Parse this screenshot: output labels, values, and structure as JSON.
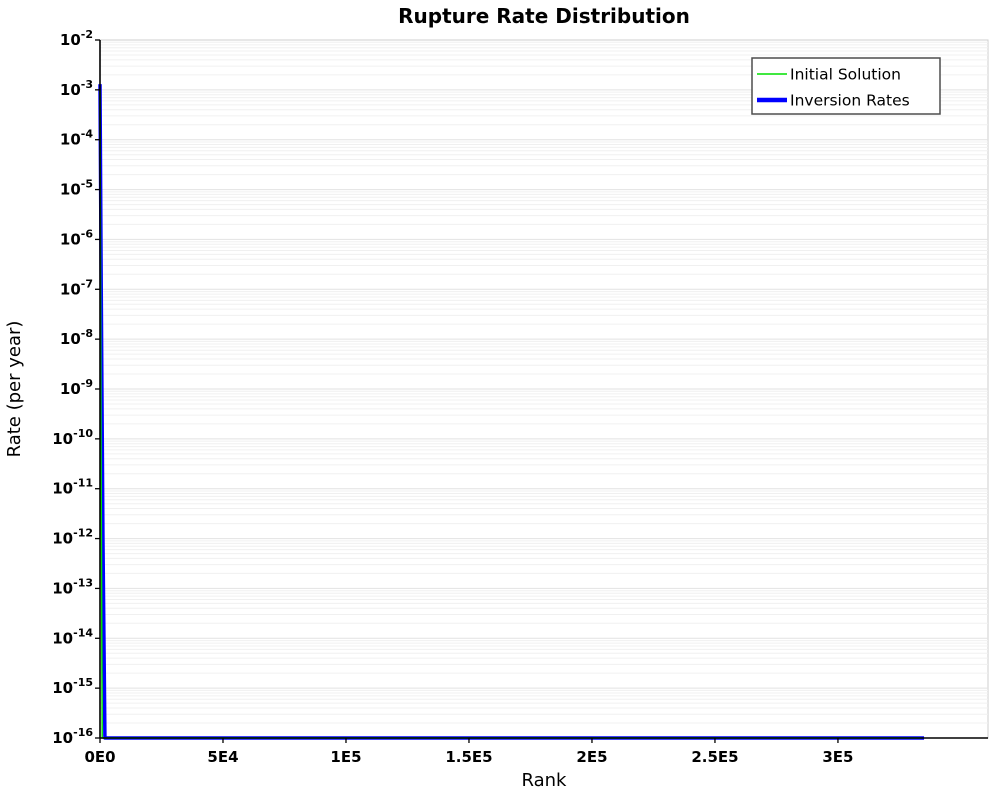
{
  "chart_data": {
    "type": "line",
    "title": "Rupture Rate Distribution",
    "xlabel": "Rank",
    "ylabel": "Rate (per year)",
    "xlim": [
      0,
      361000
    ],
    "ylog": true,
    "ylim": [
      1e-16,
      0.01
    ],
    "y_tick_exponents": [
      -2,
      -3,
      -4,
      -5,
      -6,
      -7,
      -8,
      -9,
      -10,
      -11,
      -12,
      -13,
      -14,
      -15,
      -16
    ],
    "x_ticks": [
      {
        "value": 0,
        "label": "0E0"
      },
      {
        "value": 50000,
        "label": "5E4"
      },
      {
        "value": 100000,
        "label": "1E5"
      },
      {
        "value": 150000,
        "label": "1.5E5"
      },
      {
        "value": 200000,
        "label": "2E5"
      },
      {
        "value": 250000,
        "label": "2.5E5"
      },
      {
        "value": 300000,
        "label": "3E5"
      }
    ],
    "grid": {
      "horizontal_minor": true,
      "vertical": false,
      "minor_color": "#f0f0f0",
      "major_color": "#e2e2e2"
    },
    "axis_color": "#000000",
    "plot_border_color": "#cfcfcf",
    "legend": {
      "position": "top-right",
      "entries": [
        {
          "label": "Initial Solution",
          "color": "#00e000",
          "line_width": 1.5
        },
        {
          "label": "Inversion Rates",
          "color": "#0000ff",
          "line_width": 4.5
        }
      ]
    },
    "series": [
      {
        "name": "Inversion Rates",
        "color": "#0000ff",
        "width": 3.5,
        "points": [
          [
            0,
            0.0013
          ],
          [
            500,
            1e-07
          ],
          [
            1200,
            1e-12
          ],
          [
            2000,
            1e-16
          ],
          [
            335000,
            1e-16
          ]
        ]
      },
      {
        "name": "Initial Solution",
        "color": "#00e000",
        "width": 1.5,
        "points": [
          [
            0,
            0.001
          ],
          [
            400,
            1e-10
          ],
          [
            900,
            1e-16
          ],
          [
            334000,
            1e-16
          ]
        ]
      }
    ]
  }
}
